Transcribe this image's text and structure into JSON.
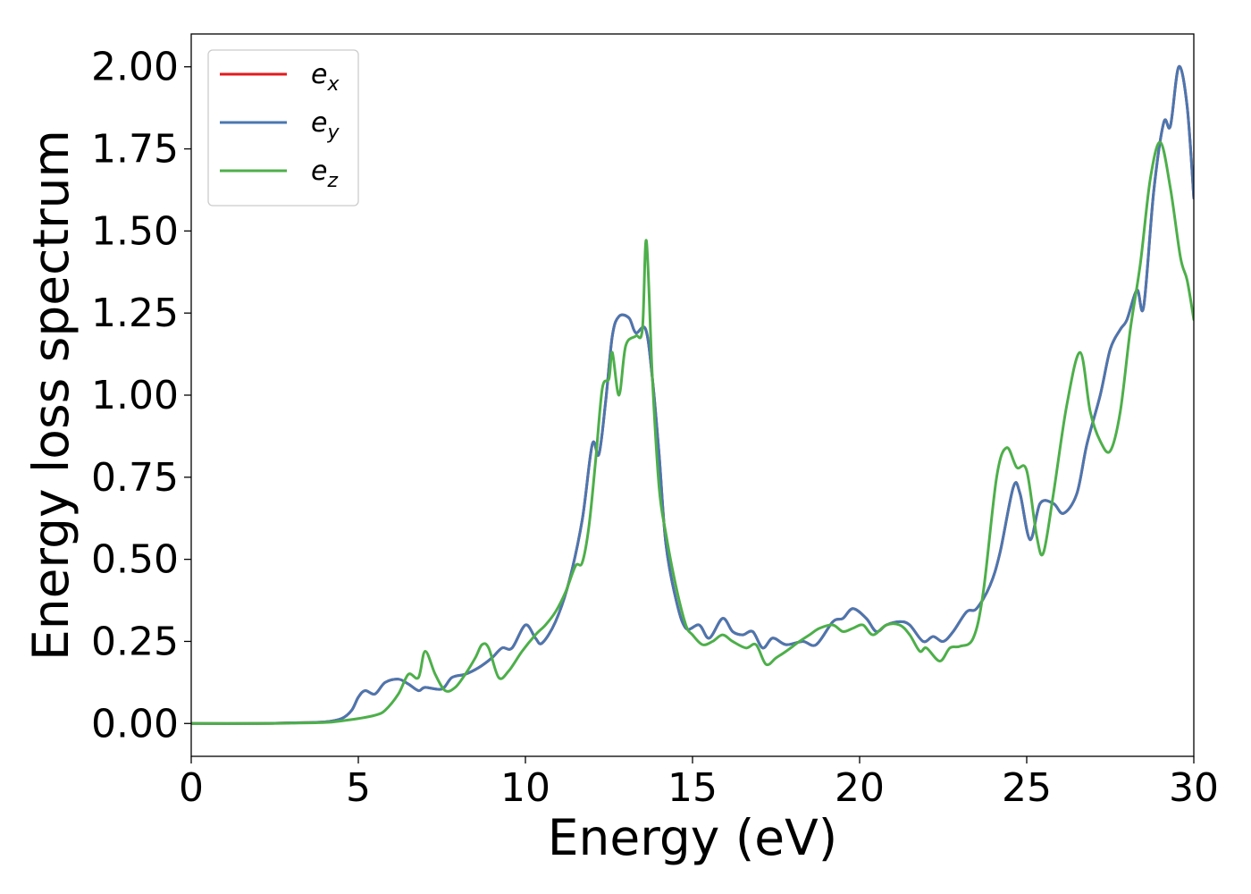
{
  "chart_data": {
    "type": "line",
    "xlabel": "Energy (eV)",
    "ylabel": "Energy loss spectrum",
    "xlim": [
      0,
      30
    ],
    "ylim": [
      -0.1,
      2.1
    ],
    "xticks": [
      0,
      5,
      10,
      15,
      20,
      25,
      30
    ],
    "xtick_labels": [
      "0",
      "5",
      "10",
      "15",
      "20",
      "25",
      "30"
    ],
    "yticks": [
      0.0,
      0.25,
      0.5,
      0.75,
      1.0,
      1.25,
      1.5,
      1.75,
      2.0
    ],
    "ytick_labels": [
      "0.00",
      "0.25",
      "0.50",
      "0.75",
      "1.00",
      "1.25",
      "1.50",
      "1.75",
      "2.00"
    ],
    "grid": false,
    "legend_position": "top-left",
    "series": [
      {
        "name": "e_x",
        "legend_base": "e",
        "legend_sub": "x",
        "color": "#e41a1c",
        "points": [
          [
            0,
            0
          ],
          [
            2,
            0
          ],
          [
            3,
            0.002
          ],
          [
            4,
            0.005
          ],
          [
            4.5,
            0.015
          ],
          [
            4.8,
            0.04
          ],
          [
            5.0,
            0.08
          ],
          [
            5.2,
            0.1
          ],
          [
            5.5,
            0.09
          ],
          [
            5.8,
            0.125
          ],
          [
            6.2,
            0.135
          ],
          [
            6.5,
            0.12
          ],
          [
            6.8,
            0.1
          ],
          [
            7.0,
            0.11
          ],
          [
            7.5,
            0.105
          ],
          [
            7.8,
            0.14
          ],
          [
            8.2,
            0.15
          ],
          [
            8.6,
            0.17
          ],
          [
            9.0,
            0.2
          ],
          [
            9.3,
            0.23
          ],
          [
            9.6,
            0.23
          ],
          [
            10.0,
            0.3
          ],
          [
            10.3,
            0.26
          ],
          [
            10.5,
            0.245
          ],
          [
            10.9,
            0.31
          ],
          [
            11.3,
            0.43
          ],
          [
            11.7,
            0.62
          ],
          [
            12.0,
            0.85
          ],
          [
            12.2,
            0.82
          ],
          [
            12.4,
            0.98
          ],
          [
            12.6,
            1.18
          ],
          [
            12.8,
            1.24
          ],
          [
            13.1,
            1.235
          ],
          [
            13.3,
            1.19
          ],
          [
            13.6,
            1.2
          ],
          [
            13.8,
            1.05
          ],
          [
            14.0,
            0.82
          ],
          [
            14.2,
            0.55
          ],
          [
            14.5,
            0.38
          ],
          [
            14.8,
            0.29
          ],
          [
            15.2,
            0.3
          ],
          [
            15.5,
            0.26
          ],
          [
            15.9,
            0.32
          ],
          [
            16.2,
            0.28
          ],
          [
            16.5,
            0.27
          ],
          [
            16.8,
            0.28
          ],
          [
            17.1,
            0.23
          ],
          [
            17.4,
            0.26
          ],
          [
            17.8,
            0.24
          ],
          [
            18.3,
            0.25
          ],
          [
            18.7,
            0.24
          ],
          [
            19.2,
            0.31
          ],
          [
            19.5,
            0.32
          ],
          [
            19.8,
            0.35
          ],
          [
            20.2,
            0.32
          ],
          [
            20.5,
            0.28
          ],
          [
            20.8,
            0.3
          ],
          [
            21.2,
            0.31
          ],
          [
            21.5,
            0.3
          ],
          [
            21.9,
            0.25
          ],
          [
            22.2,
            0.265
          ],
          [
            22.5,
            0.25
          ],
          [
            22.8,
            0.28
          ],
          [
            23.2,
            0.34
          ],
          [
            23.5,
            0.35
          ],
          [
            23.9,
            0.42
          ],
          [
            24.2,
            0.52
          ],
          [
            24.6,
            0.72
          ],
          [
            24.8,
            0.7
          ],
          [
            25.1,
            0.56
          ],
          [
            25.4,
            0.67
          ],
          [
            25.8,
            0.67
          ],
          [
            26.1,
            0.64
          ],
          [
            26.5,
            0.7
          ],
          [
            26.8,
            0.85
          ],
          [
            27.2,
            1.0
          ],
          [
            27.5,
            1.14
          ],
          [
            27.8,
            1.2
          ],
          [
            28.0,
            1.23
          ],
          [
            28.3,
            1.32
          ],
          [
            28.5,
            1.27
          ],
          [
            28.8,
            1.62
          ],
          [
            29.1,
            1.83
          ],
          [
            29.3,
            1.82
          ],
          [
            29.55,
            2.0
          ],
          [
            29.8,
            1.88
          ],
          [
            30.0,
            1.6
          ]
        ]
      },
      {
        "name": "e_y",
        "legend_base": "e",
        "legend_sub": "y",
        "color": "#4a77b0",
        "points": [
          [
            0,
            0
          ],
          [
            2,
            0
          ],
          [
            3,
            0.002
          ],
          [
            4,
            0.005
          ],
          [
            4.5,
            0.015
          ],
          [
            4.8,
            0.04
          ],
          [
            5.0,
            0.08
          ],
          [
            5.2,
            0.1
          ],
          [
            5.5,
            0.09
          ],
          [
            5.8,
            0.125
          ],
          [
            6.2,
            0.135
          ],
          [
            6.5,
            0.12
          ],
          [
            6.8,
            0.1
          ],
          [
            7.0,
            0.11
          ],
          [
            7.5,
            0.105
          ],
          [
            7.8,
            0.14
          ],
          [
            8.2,
            0.15
          ],
          [
            8.6,
            0.17
          ],
          [
            9.0,
            0.2
          ],
          [
            9.3,
            0.23
          ],
          [
            9.6,
            0.23
          ],
          [
            10.0,
            0.3
          ],
          [
            10.3,
            0.26
          ],
          [
            10.5,
            0.245
          ],
          [
            10.9,
            0.31
          ],
          [
            11.3,
            0.43
          ],
          [
            11.7,
            0.62
          ],
          [
            12.0,
            0.85
          ],
          [
            12.2,
            0.82
          ],
          [
            12.4,
            0.98
          ],
          [
            12.6,
            1.18
          ],
          [
            12.8,
            1.24
          ],
          [
            13.1,
            1.235
          ],
          [
            13.3,
            1.19
          ],
          [
            13.6,
            1.2
          ],
          [
            13.8,
            1.05
          ],
          [
            14.0,
            0.82
          ],
          [
            14.2,
            0.55
          ],
          [
            14.5,
            0.38
          ],
          [
            14.8,
            0.29
          ],
          [
            15.2,
            0.3
          ],
          [
            15.5,
            0.26
          ],
          [
            15.9,
            0.32
          ],
          [
            16.2,
            0.28
          ],
          [
            16.5,
            0.27
          ],
          [
            16.8,
            0.28
          ],
          [
            17.1,
            0.23
          ],
          [
            17.4,
            0.26
          ],
          [
            17.8,
            0.24
          ],
          [
            18.3,
            0.25
          ],
          [
            18.7,
            0.24
          ],
          [
            19.2,
            0.31
          ],
          [
            19.5,
            0.32
          ],
          [
            19.8,
            0.35
          ],
          [
            20.2,
            0.32
          ],
          [
            20.5,
            0.28
          ],
          [
            20.8,
            0.3
          ],
          [
            21.2,
            0.31
          ],
          [
            21.5,
            0.3
          ],
          [
            21.9,
            0.25
          ],
          [
            22.2,
            0.265
          ],
          [
            22.5,
            0.25
          ],
          [
            22.8,
            0.28
          ],
          [
            23.2,
            0.34
          ],
          [
            23.5,
            0.35
          ],
          [
            23.9,
            0.42
          ],
          [
            24.2,
            0.52
          ],
          [
            24.6,
            0.72
          ],
          [
            24.8,
            0.7
          ],
          [
            25.1,
            0.56
          ],
          [
            25.4,
            0.67
          ],
          [
            25.8,
            0.67
          ],
          [
            26.1,
            0.64
          ],
          [
            26.5,
            0.7
          ],
          [
            26.8,
            0.85
          ],
          [
            27.2,
            1.0
          ],
          [
            27.5,
            1.14
          ],
          [
            27.8,
            1.2
          ],
          [
            28.0,
            1.23
          ],
          [
            28.3,
            1.32
          ],
          [
            28.5,
            1.27
          ],
          [
            28.8,
            1.62
          ],
          [
            29.1,
            1.83
          ],
          [
            29.3,
            1.82
          ],
          [
            29.55,
            2.0
          ],
          [
            29.8,
            1.88
          ],
          [
            30.0,
            1.6
          ]
        ]
      },
      {
        "name": "e_z",
        "legend_base": "e",
        "legend_sub": "z",
        "color": "#4daf4a",
        "points": [
          [
            0,
            0
          ],
          [
            2,
            0
          ],
          [
            3,
            0.001
          ],
          [
            4,
            0.003
          ],
          [
            4.5,
            0.008
          ],
          [
            5.0,
            0.015
          ],
          [
            5.5,
            0.025
          ],
          [
            5.8,
            0.04
          ],
          [
            6.2,
            0.09
          ],
          [
            6.5,
            0.15
          ],
          [
            6.8,
            0.14
          ],
          [
            7.0,
            0.22
          ],
          [
            7.3,
            0.15
          ],
          [
            7.6,
            0.1
          ],
          [
            7.9,
            0.11
          ],
          [
            8.2,
            0.15
          ],
          [
            8.5,
            0.2
          ],
          [
            8.7,
            0.24
          ],
          [
            8.9,
            0.23
          ],
          [
            9.2,
            0.14
          ],
          [
            9.5,
            0.16
          ],
          [
            9.9,
            0.22
          ],
          [
            10.3,
            0.27
          ],
          [
            10.6,
            0.3
          ],
          [
            10.9,
            0.34
          ],
          [
            11.2,
            0.4
          ],
          [
            11.5,
            0.48
          ],
          [
            11.7,
            0.49
          ],
          [
            11.9,
            0.6
          ],
          [
            12.1,
            0.8
          ],
          [
            12.3,
            1.02
          ],
          [
            12.5,
            1.05
          ],
          [
            12.6,
            1.13
          ],
          [
            12.8,
            1.0
          ],
          [
            13.0,
            1.15
          ],
          [
            13.3,
            1.18
          ],
          [
            13.5,
            1.2
          ],
          [
            13.62,
            1.47
          ],
          [
            13.8,
            1.05
          ],
          [
            14.0,
            0.72
          ],
          [
            14.2,
            0.58
          ],
          [
            14.5,
            0.42
          ],
          [
            14.8,
            0.3
          ],
          [
            15.0,
            0.27
          ],
          [
            15.3,
            0.24
          ],
          [
            15.6,
            0.25
          ],
          [
            15.9,
            0.27
          ],
          [
            16.2,
            0.25
          ],
          [
            16.6,
            0.23
          ],
          [
            16.9,
            0.24
          ],
          [
            17.2,
            0.18
          ],
          [
            17.5,
            0.2
          ],
          [
            17.8,
            0.22
          ],
          [
            18.2,
            0.25
          ],
          [
            18.5,
            0.27
          ],
          [
            18.8,
            0.29
          ],
          [
            19.2,
            0.3
          ],
          [
            19.5,
            0.28
          ],
          [
            19.8,
            0.29
          ],
          [
            20.1,
            0.3
          ],
          [
            20.4,
            0.27
          ],
          [
            20.8,
            0.3
          ],
          [
            21.2,
            0.3
          ],
          [
            21.5,
            0.27
          ],
          [
            21.8,
            0.22
          ],
          [
            22.0,
            0.23
          ],
          [
            22.4,
            0.19
          ],
          [
            22.7,
            0.23
          ],
          [
            23.0,
            0.235
          ],
          [
            23.4,
            0.26
          ],
          [
            23.7,
            0.4
          ],
          [
            24.1,
            0.75
          ],
          [
            24.4,
            0.84
          ],
          [
            24.7,
            0.78
          ],
          [
            25.0,
            0.77
          ],
          [
            25.3,
            0.57
          ],
          [
            25.5,
            0.52
          ],
          [
            25.8,
            0.7
          ],
          [
            26.2,
            0.97
          ],
          [
            26.6,
            1.13
          ],
          [
            26.9,
            0.95
          ],
          [
            27.2,
            0.86
          ],
          [
            27.5,
            0.83
          ],
          [
            27.8,
            0.95
          ],
          [
            28.1,
            1.2
          ],
          [
            28.4,
            1.4
          ],
          [
            28.7,
            1.66
          ],
          [
            29.0,
            1.77
          ],
          [
            29.3,
            1.63
          ],
          [
            29.6,
            1.42
          ],
          [
            29.8,
            1.35
          ],
          [
            30.0,
            1.23
          ]
        ]
      }
    ]
  }
}
